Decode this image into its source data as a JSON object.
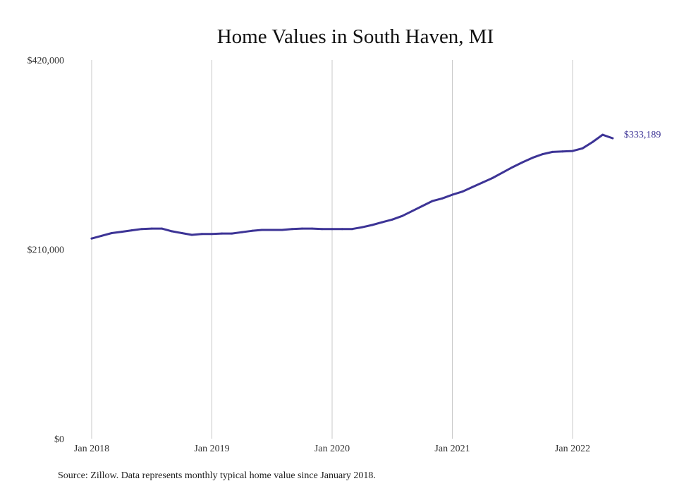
{
  "chart_data": {
    "type": "line",
    "title": "Home Values in South Haven, MI",
    "ylim": [
      0,
      420000
    ],
    "yticks": [
      0,
      210000,
      420000
    ],
    "ytick_labels": [
      "$0",
      "$210,000",
      "$420,000"
    ],
    "xticks": [
      "2018-01",
      "2019-01",
      "2020-01",
      "2021-01",
      "2022-01"
    ],
    "xtick_labels": [
      "Jan 2018",
      "Jan 2019",
      "Jan 2020",
      "Jan 2021",
      "Jan 2022"
    ],
    "xlim": [
      "2018-01",
      "2022-06"
    ],
    "grid": {
      "x": true,
      "y": false
    },
    "line_color": "#3d3496",
    "grid_color": "#c8c8c8",
    "end_label": "$333,189",
    "series": [
      {
        "x": [
          "2018-01",
          "2018-02",
          "2018-03",
          "2018-04",
          "2018-05",
          "2018-06",
          "2018-07",
          "2018-08",
          "2018-09",
          "2018-10",
          "2018-11",
          "2018-12",
          "2019-01",
          "2019-02",
          "2019-03",
          "2019-04",
          "2019-05",
          "2019-06",
          "2019-07",
          "2019-08",
          "2019-09",
          "2019-10",
          "2019-11",
          "2019-12",
          "2020-01",
          "2020-02",
          "2020-03",
          "2020-04",
          "2020-05",
          "2020-06",
          "2020-07",
          "2020-08",
          "2020-09",
          "2020-10",
          "2020-11",
          "2020-12",
          "2021-01",
          "2021-02",
          "2021-03",
          "2021-04",
          "2021-05",
          "2021-06",
          "2021-07",
          "2021-08",
          "2021-09",
          "2021-10",
          "2021-11",
          "2021-12",
          "2022-01",
          "2022-02",
          "2022-03",
          "2022-04",
          "2022-05"
        ],
        "values": [
          222000,
          225000,
          228000,
          229500,
          231000,
          232500,
          233000,
          233000,
          230000,
          228000,
          226000,
          227000,
          227000,
          227500,
          227500,
          229000,
          230500,
          231500,
          231500,
          231500,
          232500,
          233000,
          233000,
          232500,
          232500,
          232500,
          232500,
          234500,
          237000,
          240000,
          243000,
          247000,
          252500,
          258000,
          263500,
          266500,
          270500,
          274000,
          279000,
          284000,
          289000,
          295000,
          301000,
          306500,
          311500,
          315500,
          318000,
          318500,
          319000,
          322000,
          329000,
          337000,
          333189
        ]
      }
    ]
  },
  "source_text": "Source: Zillow. Data represents monthly typical home value since January 2018."
}
